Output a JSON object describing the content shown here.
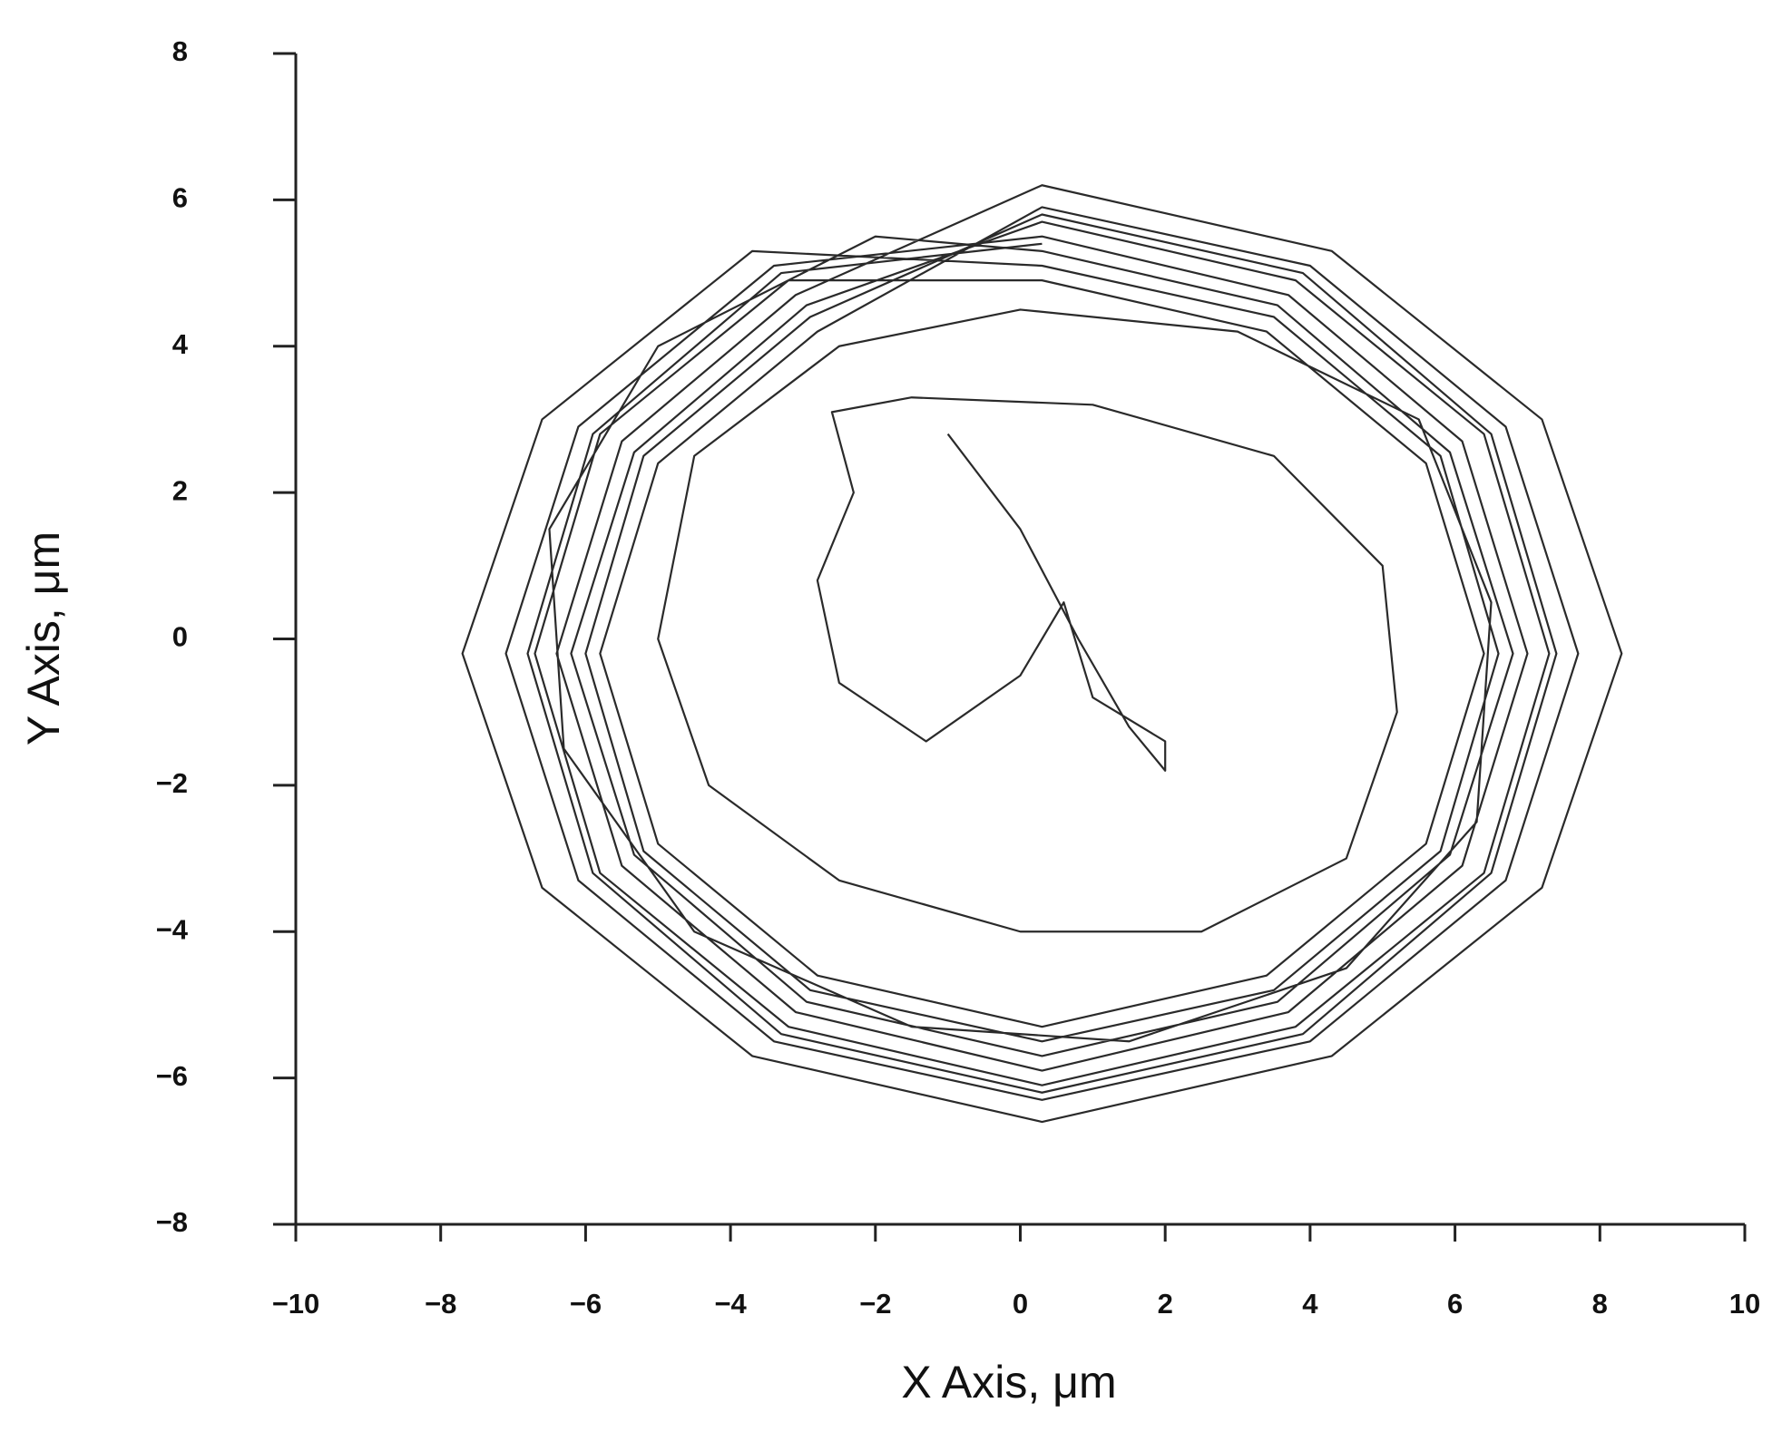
{
  "chart_data": {
    "type": "line",
    "xlabel": "X Axis, μm",
    "ylabel": "Y Axis, μm",
    "color": "#2a2a2a",
    "xlim": [
      -10,
      10
    ],
    "ylim": [
      -8,
      8
    ],
    "xticks": [
      {
        "value": -10,
        "label": "−10"
      },
      {
        "value": -8,
        "label": "−8"
      },
      {
        "value": -6,
        "label": "−6"
      },
      {
        "value": -4,
        "label": "−4"
      },
      {
        "value": -2,
        "label": "−2"
      },
      0,
      2,
      4,
      6,
      8,
      10
    ],
    "yticks": [
      {
        "value": -8,
        "label": "−8"
      },
      {
        "value": -6,
        "label": "−6"
      },
      {
        "value": -4,
        "label": "−4"
      },
      {
        "value": -2,
        "label": "−2"
      },
      0,
      2,
      4,
      6,
      8
    ],
    "x": [
      -1,
      0,
      0.8,
      1.5,
      2,
      2,
      1,
      0.6,
      0,
      -1.3,
      -2.5,
      -2.8,
      -2.3,
      -2.6,
      -1.5,
      1,
      3.5,
      5,
      5.2,
      4.5,
      2.5,
      0,
      -2.5,
      -4.3,
      -5,
      -4.5,
      -2.5,
      0,
      3,
      5.5,
      6.5,
      6.3,
      4.5,
      1.5,
      -1.5,
      -4.5,
      -6.3,
      -6.5,
      -5,
      -2,
      0.3,
      3.55,
      5.93,
      6.8,
      5.93,
      3.55,
      0.3,
      -2.95,
      -5.33,
      -6.2,
      -5.33,
      -2.95,
      0.3,
      3.8,
      6.4,
      7.3,
      6.4,
      3.8,
      0.3,
      -3.2,
      -5.8,
      -6.7,
      -5.8,
      -3.2,
      0.3,
      3.4,
      5.6,
      6.4,
      5.6,
      3.4,
      0.3,
      -2.8,
      -5,
      -5.8,
      -5,
      -2.8,
      0.3,
      4,
      6.7,
      7.7,
      6.7,
      4,
      0.3,
      -3.4,
      -6.1,
      -7.1,
      -6.1,
      -3.4,
      0.3,
      3.7,
      6.1,
      7,
      6.1,
      3.7,
      0.3,
      -3.1,
      -5.5,
      -6.4,
      -5.5,
      -3.1,
      0.3,
      4.3,
      7.2,
      8.3,
      7.2,
      4.3,
      0.3,
      -3.7,
      -6.6,
      -7.7,
      -6.6,
      -3.7,
      0.3,
      3.5,
      5.8,
      6.6,
      5.8,
      3.5,
      0.3,
      -2.9,
      -5.2,
      -6,
      -5.2,
      -2.9,
      0.3,
      3.9,
      6.5,
      7.4,
      6.5,
      3.9,
      0.3,
      -3.3,
      -5.9,
      -6.8,
      -5.9,
      -3.3,
      0.3
    ],
    "values": [
      2.8,
      1.5,
      0,
      -1.2,
      -1.8,
      -1.4,
      -0.8,
      0.5,
      -0.5,
      -1.4,
      -0.6,
      0.8,
      2,
      3.1,
      3.3,
      3.2,
      2.5,
      1,
      -1,
      -3,
      -4,
      -4,
      -3.3,
      -2,
      0,
      2.5,
      4,
      4.5,
      4.2,
      3,
      0.5,
      -2.5,
      -4.5,
      -5.5,
      -5.3,
      -4,
      -1.5,
      1.5,
      4,
      5.5,
      5.3,
      4.56,
      2.55,
      -0.2,
      -2.95,
      -4.96,
      -5.7,
      -4.96,
      -2.95,
      -0.2,
      2.55,
      4.56,
      5.7,
      4.9,
      2.8,
      -0.2,
      -3.2,
      -5.3,
      -6.1,
      -5.3,
      -3.2,
      -0.2,
      2.8,
      4.9,
      4.9,
      4.2,
      2.4,
      -0.2,
      -2.8,
      -4.6,
      -5.3,
      -4.6,
      -2.8,
      -0.2,
      2.4,
      4.2,
      5.9,
      5.1,
      2.9,
      -0.2,
      -3.3,
      -5.5,
      -6.3,
      -5.5,
      -3.3,
      -0.2,
      2.9,
      5.1,
      5.5,
      4.7,
      2.7,
      -0.2,
      -3.1,
      -5.1,
      -5.9,
      -5.1,
      -3.1,
      -0.2,
      2.7,
      4.7,
      6.2,
      5.3,
      3,
      -0.2,
      -3.4,
      -5.7,
      -6.6,
      -5.7,
      -3.4,
      -0.2,
      3,
      5.3,
      5.1,
      4.4,
      2.5,
      -0.2,
      -2.9,
      -4.8,
      -5.5,
      -4.8,
      -2.9,
      -0.2,
      2.5,
      4.4,
      5.8,
      5,
      2.8,
      -0.2,
      -3.2,
      -5.4,
      -6.2,
      -5.4,
      -3.2,
      -0.2,
      2.8,
      5,
      5.4
    ]
  }
}
